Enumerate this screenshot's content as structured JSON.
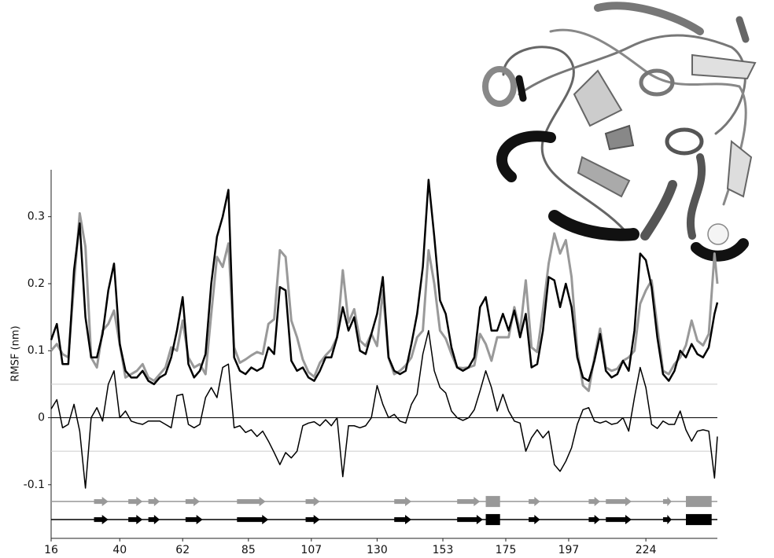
{
  "chart_data": {
    "type": "line",
    "y_label": "RMSF (nm)",
    "xlim": [
      16,
      249
    ],
    "ylim": [
      -0.18,
      0.37
    ],
    "xticks": [
      16,
      40,
      62,
      85,
      107,
      130,
      153,
      175,
      197,
      224
    ],
    "yticks": [
      -0.1,
      0,
      0.1,
      0.2,
      0.3
    ],
    "hlines": [
      {
        "y": 0.05,
        "color": "#cccccc"
      },
      {
        "y": 0,
        "color": "#000000"
      },
      {
        "y": -0.05,
        "color": "#cccccc"
      }
    ],
    "x": [
      16,
      18,
      20,
      22,
      24,
      26,
      28,
      30,
      32,
      34,
      36,
      38,
      40,
      42,
      44,
      46,
      48,
      50,
      52,
      54,
      56,
      58,
      60,
      62,
      64,
      66,
      68,
      70,
      72,
      74,
      76,
      78,
      80,
      82,
      84,
      86,
      88,
      90,
      92,
      94,
      96,
      98,
      100,
      102,
      104,
      106,
      108,
      110,
      112,
      114,
      116,
      118,
      120,
      122,
      124,
      126,
      128,
      130,
      132,
      134,
      136,
      138,
      140,
      142,
      144,
      146,
      148,
      150,
      152,
      154,
      156,
      158,
      160,
      162,
      164,
      166,
      168,
      170,
      172,
      174,
      176,
      178,
      180,
      182,
      184,
      186,
      188,
      190,
      192,
      194,
      196,
      198,
      200,
      202,
      204,
      206,
      208,
      210,
      212,
      214,
      216,
      218,
      220,
      222,
      224,
      226,
      228,
      230,
      232,
      234,
      236,
      238,
      240,
      242,
      244,
      246,
      248,
      249
    ],
    "series": [
      {
        "color": "#999999",
        "width": 3,
        "values": [
          0.1,
          0.11,
          0.095,
          0.09,
          0.2,
          0.305,
          0.255,
          0.09,
          0.075,
          0.13,
          0.14,
          0.16,
          0.11,
          0.06,
          0.065,
          0.07,
          0.08,
          0.06,
          0.055,
          0.065,
          0.075,
          0.105,
          0.1,
          0.145,
          0.09,
          0.075,
          0.08,
          0.065,
          0.155,
          0.24,
          0.225,
          0.26,
          0.105,
          0.082,
          0.087,
          0.093,
          0.098,
          0.095,
          0.14,
          0.147,
          0.25,
          0.24,
          0.145,
          0.12,
          0.087,
          0.068,
          0.061,
          0.082,
          0.093,
          0.102,
          0.12,
          0.22,
          0.142,
          0.162,
          0.115,
          0.107,
          0.125,
          0.107,
          0.19,
          0.09,
          0.065,
          0.07,
          0.078,
          0.09,
          0.12,
          0.13,
          0.25,
          0.2,
          0.13,
          0.118,
          0.095,
          0.075,
          0.074,
          0.075,
          0.078,
          0.125,
          0.11,
          0.085,
          0.12,
          0.12,
          0.12,
          0.165,
          0.128,
          0.205,
          0.105,
          0.098,
          0.16,
          0.23,
          0.275,
          0.245,
          0.265,
          0.21,
          0.1,
          0.048,
          0.04,
          0.09,
          0.133,
          0.075,
          0.07,
          0.073,
          0.085,
          0.09,
          0.1,
          0.17,
          0.19,
          0.205,
          0.136,
          0.07,
          0.065,
          0.08,
          0.09,
          0.108,
          0.145,
          0.115,
          0.108,
          0.125,
          0.245,
          0.2
        ]
      },
      {
        "color": "#000000",
        "width": 2.5,
        "values": [
          0.116,
          0.14,
          0.08,
          0.08,
          0.22,
          0.29,
          0.15,
          0.09,
          0.09,
          0.125,
          0.19,
          0.23,
          0.11,
          0.07,
          0.06,
          0.06,
          0.07,
          0.055,
          0.05,
          0.06,
          0.065,
          0.09,
          0.13,
          0.18,
          0.08,
          0.06,
          0.07,
          0.095,
          0.2,
          0.27,
          0.3,
          0.34,
          0.09,
          0.07,
          0.065,
          0.075,
          0.07,
          0.075,
          0.105,
          0.095,
          0.195,
          0.19,
          0.085,
          0.07,
          0.075,
          0.06,
          0.055,
          0.07,
          0.09,
          0.09,
          0.12,
          0.165,
          0.13,
          0.15,
          0.1,
          0.095,
          0.125,
          0.155,
          0.21,
          0.09,
          0.07,
          0.065,
          0.07,
          0.11,
          0.155,
          0.225,
          0.355,
          0.27,
          0.175,
          0.155,
          0.105,
          0.075,
          0.07,
          0.075,
          0.09,
          0.165,
          0.18,
          0.13,
          0.13,
          0.155,
          0.13,
          0.16,
          0.12,
          0.155,
          0.075,
          0.08,
          0.13,
          0.21,
          0.205,
          0.165,
          0.2,
          0.165,
          0.09,
          0.06,
          0.055,
          0.085,
          0.125,
          0.07,
          0.06,
          0.065,
          0.085,
          0.07,
          0.13,
          0.245,
          0.235,
          0.195,
          0.12,
          0.065,
          0.055,
          0.07,
          0.1,
          0.09,
          0.11,
          0.095,
          0.09,
          0.105,
          0.155,
          0.172
        ]
      },
      {
        "color": "#000000",
        "width": 1.5,
        "values": [
          0.013,
          0.027,
          -0.015,
          -0.01,
          0.02,
          -0.02,
          -0.105,
          0.0,
          0.015,
          -0.005,
          0.05,
          0.07,
          0.0,
          0.01,
          -0.005,
          -0.008,
          -0.01,
          -0.005,
          -0.005,
          -0.005,
          -0.01,
          -0.015,
          0.033,
          0.035,
          -0.01,
          -0.015,
          -0.01,
          0.03,
          0.045,
          0.03,
          0.075,
          0.08,
          -0.015,
          -0.012,
          -0.022,
          -0.018,
          -0.028,
          -0.02,
          -0.035,
          -0.052,
          -0.07,
          -0.052,
          -0.06,
          -0.05,
          -0.012,
          -0.008,
          -0.006,
          -0.012,
          -0.003,
          -0.012,
          0.0,
          -0.088,
          -0.012,
          -0.012,
          -0.015,
          -0.012,
          0.0,
          0.048,
          0.02,
          0.0,
          0.005,
          -0.005,
          -0.008,
          0.02,
          0.035,
          0.095,
          0.13,
          0.07,
          0.045,
          0.037,
          0.01,
          0.0,
          -0.004,
          0.0,
          0.012,
          0.04,
          0.07,
          0.045,
          0.01,
          0.035,
          0.01,
          -0.005,
          -0.008,
          -0.05,
          -0.03,
          -0.018,
          -0.03,
          -0.02,
          -0.07,
          -0.08,
          -0.065,
          -0.045,
          -0.01,
          0.012,
          0.015,
          -0.005,
          -0.008,
          -0.005,
          -0.01,
          -0.008,
          0.0,
          -0.02,
          0.03,
          0.075,
          0.045,
          -0.01,
          -0.016,
          -0.005,
          -0.01,
          -0.01,
          0.01,
          -0.018,
          -0.035,
          -0.02,
          -0.018,
          -0.02,
          -0.09,
          -0.028
        ]
      }
    ],
    "ss_tracks": [
      {
        "y": -0.125,
        "color": "#999999",
        "strands": [
          [
            31,
            36
          ],
          [
            43,
            48
          ],
          [
            50,
            54
          ],
          [
            63,
            68
          ],
          [
            81,
            91
          ],
          [
            105,
            110
          ],
          [
            136,
            142
          ],
          [
            158,
            166
          ],
          [
            183,
            187
          ],
          [
            204,
            208
          ],
          [
            210,
            219
          ],
          [
            230,
            233
          ]
        ],
        "helices": [
          [
            168,
            173
          ],
          [
            238,
            247
          ]
        ]
      },
      {
        "y": -0.152,
        "color": "#000000",
        "strands": [
          [
            31,
            36
          ],
          [
            43,
            48
          ],
          [
            50,
            54
          ],
          [
            63,
            69
          ],
          [
            81,
            92
          ],
          [
            105,
            110
          ],
          [
            136,
            142
          ],
          [
            158,
            167
          ],
          [
            183,
            187
          ],
          [
            204,
            208
          ],
          [
            210,
            219
          ],
          [
            230,
            233
          ]
        ],
        "helices": [
          [
            168,
            173
          ],
          [
            238,
            247
          ]
        ]
      }
    ]
  }
}
